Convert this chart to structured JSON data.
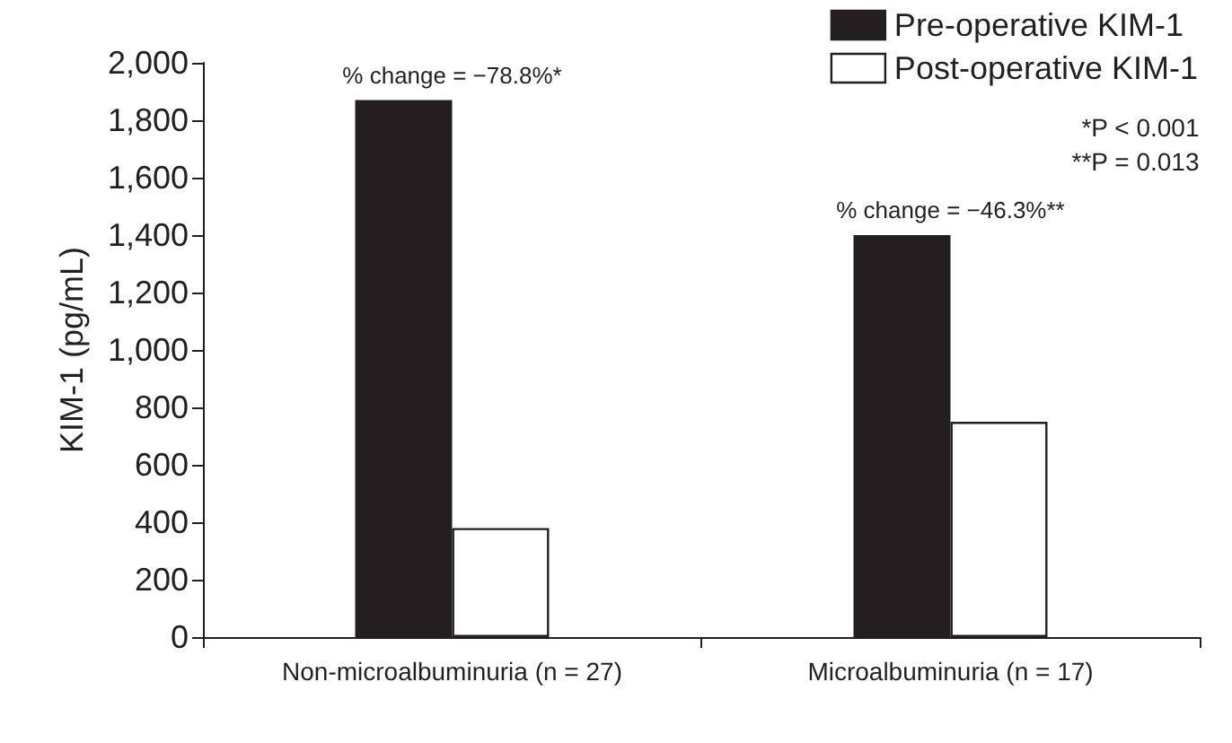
{
  "chart_data": {
    "type": "bar",
    "categories": [
      "Non-microalbuminuria (n = 27)",
      "Microalbuminuria (n = 17)"
    ],
    "ylabel": "KIM-1 (pg/mL)",
    "series": [
      {
        "name": "Pre-operative KIM-1",
        "color": "#231f20",
        "values": [
          1870,
          1400
        ]
      },
      {
        "name": "Post-operative KIM-1",
        "color": "#ffffff",
        "values": [
          380,
          750
        ]
      }
    ],
    "ylim": [
      0,
      2000
    ],
    "yticks": [
      {
        "value": 0,
        "label": "0"
      },
      {
        "value": 200,
        "label": "200"
      },
      {
        "value": 400,
        "label": "400"
      },
      {
        "value": 600,
        "label": "600"
      },
      {
        "value": 800,
        "label": "800"
      },
      {
        "value": 1000,
        "label": "1,000"
      },
      {
        "value": 1200,
        "label": "1,200"
      },
      {
        "value": 1400,
        "label": "1,400"
      },
      {
        "value": 1600,
        "label": "1,600"
      },
      {
        "value": 1800,
        "label": "1,800"
      },
      {
        "value": 2000,
        "label": "2,000"
      }
    ],
    "annotations": [
      "% change = −78.8%*",
      "% change = −46.3%**",
      "*P < 0.001",
      "**P = 0.013"
    ],
    "grid": false,
    "legend": "top right"
  }
}
